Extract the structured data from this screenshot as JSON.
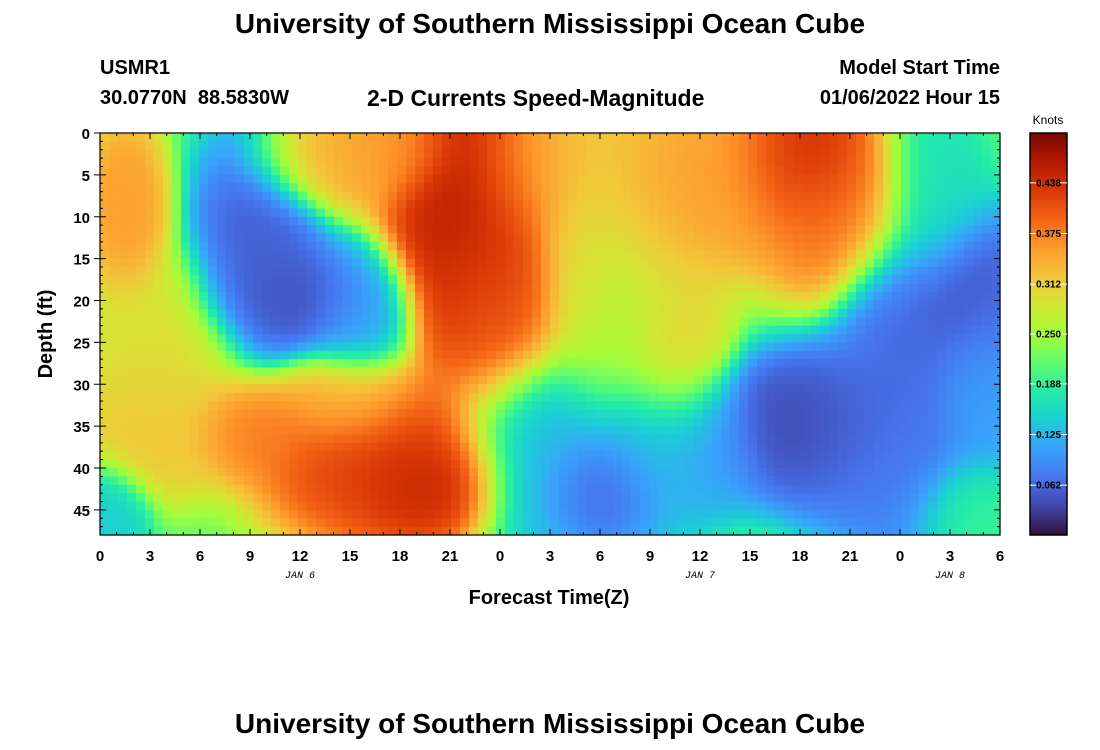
{
  "header": {
    "title": "University of Southern Mississippi Ocean Cube",
    "station_id": "USMR1",
    "station_coords": "30.0770N  88.5830W",
    "product": "2-D Currents Speed-Magnitude",
    "model_start_label": "Model Start Time",
    "model_start_value": "01/06/2022 Hour 15"
  },
  "footer": {
    "title_repeat": "University of Southern Mississippi Ocean Cube"
  },
  "chart_data": {
    "type": "heatmap",
    "xlabel": "Forecast Time(Z)",
    "ylabel": "Depth (ft)",
    "colorbar_label": "Knots",
    "x_tick_labels": [
      "0",
      "3",
      "6",
      "9",
      "12",
      "15",
      "18",
      "21",
      "0",
      "3",
      "6",
      "9",
      "12",
      "15",
      "18",
      "21",
      "0",
      "3",
      "6"
    ],
    "date_labels": [
      {
        "label": "JAN 6",
        "x_hours": 12
      },
      {
        "label": "JAN 7",
        "x_hours": 36
      },
      {
        "label": "JAN 8",
        "x_hours": 51
      }
    ],
    "x_range_hours": [
      0,
      54
    ],
    "y_ticks": [
      0,
      5,
      10,
      15,
      20,
      25,
      30,
      35,
      40,
      45
    ],
    "y_range_ft": [
      0,
      48
    ],
    "y_inverted": true,
    "colorbar_ticks": [
      0.062,
      0.125,
      0.188,
      0.25,
      0.312,
      0.375,
      0.438
    ],
    "value_range": [
      0,
      0.5
    ],
    "colormap": [
      "#30123b",
      "#4145ab",
      "#4675ed",
      "#39a2fc",
      "#1bcfd4",
      "#24eca6",
      "#61fc6c",
      "#a4fc3b",
      "#d1e834",
      "#f3c63a",
      "#fe9b2d",
      "#f36315",
      "#d93806",
      "#b11901",
      "#7a0403"
    ],
    "features": [
      {
        "t": 1.5,
        "d": 9,
        "v": 0.36,
        "st": 1.2,
        "sd": 5
      },
      {
        "t": 3.5,
        "d": 28,
        "v": 0.3,
        "st": 2.5,
        "sd": 6
      },
      {
        "t": 3,
        "d": 35,
        "v": 0.33,
        "st": 2,
        "sd": 4
      },
      {
        "t": 9,
        "d": 35,
        "v": 0.38,
        "st": 2,
        "sd": 3
      },
      {
        "t": 15,
        "d": 32,
        "v": 0.33,
        "st": 2,
        "sd": 3
      },
      {
        "t": 17,
        "d": 39,
        "v": 0.43,
        "st": 3.5,
        "sd": 5
      },
      {
        "t": 19.5,
        "d": 42,
        "v": 0.46,
        "st": 2,
        "sd": 3
      },
      {
        "t": 0.5,
        "d": 45,
        "v": 0.14,
        "st": 1.2,
        "sd": 3
      },
      {
        "t": 9.5,
        "d": 13,
        "v": 0.05,
        "st": 1.8,
        "sd": 7
      },
      {
        "t": 12,
        "d": 20,
        "v": 0.04,
        "st": 2.5,
        "sd": 3
      },
      {
        "t": 15.5,
        "d": 22,
        "v": 0.11,
        "st": 1.5,
        "sd": 4
      },
      {
        "t": 13,
        "d": 3,
        "v": 0.34,
        "st": 2,
        "sd": 3
      },
      {
        "t": 17,
        "d": 2,
        "v": 0.36,
        "st": 2,
        "sd": 3
      },
      {
        "t": 22.5,
        "d": 10,
        "v": 0.47,
        "st": 2.5,
        "sd": 9
      },
      {
        "t": 24,
        "d": 20,
        "v": 0.4,
        "st": 2,
        "sd": 6
      },
      {
        "t": 26,
        "d": 5,
        "v": 0.36,
        "st": 2,
        "sd": 5
      },
      {
        "t": 28,
        "d": 3,
        "v": 0.33,
        "st": 2,
        "sd": 4
      },
      {
        "t": 29,
        "d": 12,
        "v": 0.3,
        "st": 1.5,
        "sd": 8
      },
      {
        "t": 31,
        "d": 20,
        "v": 0.26,
        "st": 2,
        "sd": 8
      },
      {
        "t": 33,
        "d": 8,
        "v": 0.35,
        "st": 2.5,
        "sd": 6
      },
      {
        "t": 34.5,
        "d": 26,
        "v": 0.31,
        "st": 1.5,
        "sd": 6
      },
      {
        "t": 38,
        "d": 5,
        "v": 0.36,
        "st": 2.5,
        "sd": 5
      },
      {
        "t": 42,
        "d": 3,
        "v": 0.46,
        "st": 2,
        "sd": 4
      },
      {
        "t": 44,
        "d": 9,
        "v": 0.39,
        "st": 2.5,
        "sd": 5
      },
      {
        "t": 27,
        "d": 38,
        "v": 0.12,
        "st": 2.5,
        "sd": 6
      },
      {
        "t": 30,
        "d": 42,
        "v": 0.04,
        "st": 1.8,
        "sd": 3.5
      },
      {
        "t": 33,
        "d": 38,
        "v": 0.12,
        "st": 2,
        "sd": 5
      },
      {
        "t": 36,
        "d": 37,
        "v": 0.1,
        "st": 2,
        "sd": 4
      },
      {
        "t": 42,
        "d": 35,
        "v": 0.03,
        "st": 2.5,
        "sd": 4
      },
      {
        "t": 45,
        "d": 36,
        "v": 0.06,
        "st": 2.5,
        "sd": 5
      },
      {
        "t": 48,
        "d": 28,
        "v": 0.06,
        "st": 1.8,
        "sd": 9
      },
      {
        "t": 48,
        "d": 40,
        "v": 0.08,
        "st": 2,
        "sd": 5
      },
      {
        "t": 52,
        "d": 20,
        "v": 0.04,
        "st": 2,
        "sd": 5
      },
      {
        "t": 53,
        "d": 30,
        "v": 0.1,
        "st": 1.5,
        "sd": 6
      },
      {
        "t": 50,
        "d": 8,
        "v": 0.16,
        "st": 1.5,
        "sd": 5
      },
      {
        "t": 52,
        "d": 45,
        "v": 0.19,
        "st": 1.8,
        "sd": 3
      }
    ]
  }
}
